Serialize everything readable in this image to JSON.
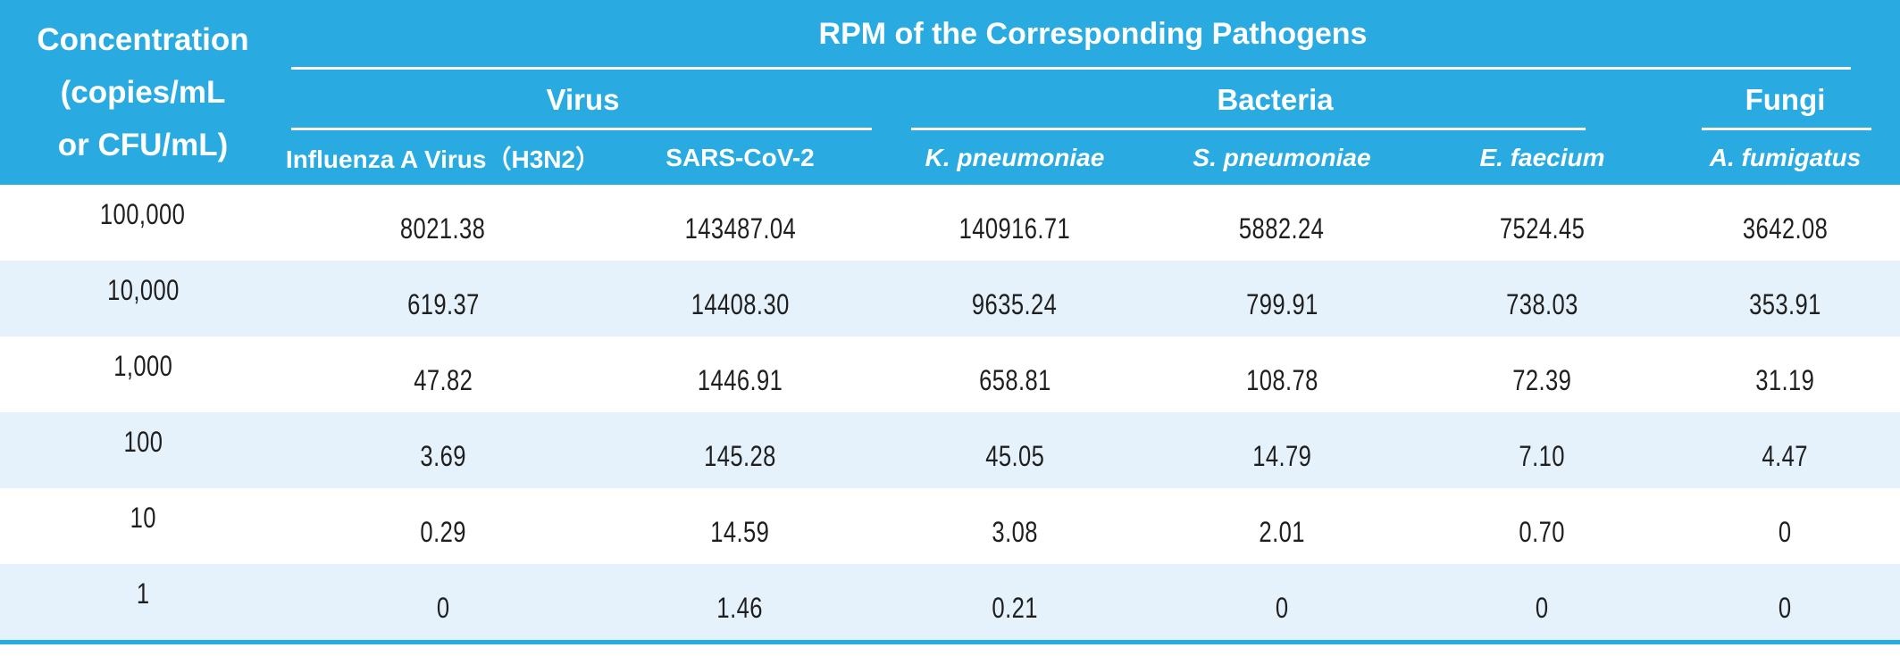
{
  "table": {
    "corner_header": {
      "line1": "Concentration",
      "line2": "(copies/mL",
      "line3": "or CFU/mL)"
    },
    "title": "RPM of the Corresponding Pathogens",
    "groups": [
      {
        "label": "Virus",
        "span": 2
      },
      {
        "label": "Bacteria",
        "span": 3
      },
      {
        "label": "Fungi",
        "span": 1
      }
    ],
    "columns": [
      {
        "label": "Influenza A Virus（H3N2）",
        "group": "Virus",
        "italic": false
      },
      {
        "label": "SARS-CoV-2",
        "group": "Virus",
        "italic": false
      },
      {
        "label": "K. pneumoniae",
        "group": "Bacteria",
        "italic": true
      },
      {
        "label": "S. pneumoniae",
        "group": "Bacteria",
        "italic": true
      },
      {
        "label": "E. faecium",
        "group": "Bacteria",
        "italic": true
      },
      {
        "label": "A. fumigatus",
        "group": "Fungi",
        "italic": true
      }
    ],
    "rows": [
      {
        "concentration": "100,000",
        "values": [
          "8021.38",
          "143487.04",
          "140916.71",
          "5882.24",
          "7524.45",
          "3642.08"
        ]
      },
      {
        "concentration": "10,000",
        "values": [
          "619.37",
          "14408.30",
          "9635.24",
          "799.91",
          "738.03",
          "353.91"
        ]
      },
      {
        "concentration": "1,000",
        "values": [
          "47.82",
          "1446.91",
          "658.81",
          "108.78",
          "72.39",
          "31.19"
        ]
      },
      {
        "concentration": "100",
        "values": [
          "3.69",
          "145.28",
          "45.05",
          "14.79",
          "7.10",
          "4.47"
        ]
      },
      {
        "concentration": "10",
        "values": [
          "0.29",
          "14.59",
          "3.08",
          "2.01",
          "0.70",
          "0"
        ]
      },
      {
        "concentration": "1",
        "values": [
          "0",
          "1.46",
          "0.21",
          "0",
          "0",
          "0"
        ]
      }
    ],
    "colors": {
      "header_bg": "#29ABE2",
      "header_text": "#FFFFFF",
      "row_bg": "#FFFFFF",
      "row_alt_bg": "#E5F2FB",
      "body_text": "#1F1F1F",
      "bottom_rule": "#29ABE2"
    }
  },
  "chart_data": {
    "type": "table",
    "title": "RPM of the Corresponding Pathogens",
    "row_axis_label": "Concentration (copies/mL or CFU/mL)",
    "column_groups": [
      {
        "group": "Virus",
        "columns": [
          "Influenza A Virus（H3N2）",
          "SARS-CoV-2"
        ]
      },
      {
        "group": "Bacteria",
        "columns": [
          "K. pneumoniae",
          "S. pneumoniae",
          "E. faecium"
        ]
      },
      {
        "group": "Fungi",
        "columns": [
          "A. fumigatus"
        ]
      }
    ],
    "concentrations": [
      100000,
      10000,
      1000,
      100,
      10,
      1
    ],
    "series": [
      {
        "name": "Influenza A Virus（H3N2）",
        "group": "Virus",
        "values": [
          8021.38,
          619.37,
          47.82,
          3.69,
          0.29,
          0
        ]
      },
      {
        "name": "SARS-CoV-2",
        "group": "Virus",
        "values": [
          143487.04,
          14408.3,
          1446.91,
          145.28,
          14.59,
          1.46
        ]
      },
      {
        "name": "K. pneumoniae",
        "group": "Bacteria",
        "values": [
          140916.71,
          9635.24,
          658.81,
          45.05,
          3.08,
          0.21
        ]
      },
      {
        "name": "S. pneumoniae",
        "group": "Bacteria",
        "values": [
          5882.24,
          799.91,
          108.78,
          14.79,
          2.01,
          0
        ]
      },
      {
        "name": "E. faecium",
        "group": "Bacteria",
        "values": [
          7524.45,
          738.03,
          72.39,
          7.1,
          0.7,
          0
        ]
      },
      {
        "name": "A. fumigatus",
        "group": "Fungi",
        "values": [
          3642.08,
          353.91,
          31.19,
          4.47,
          0,
          0
        ]
      }
    ]
  }
}
